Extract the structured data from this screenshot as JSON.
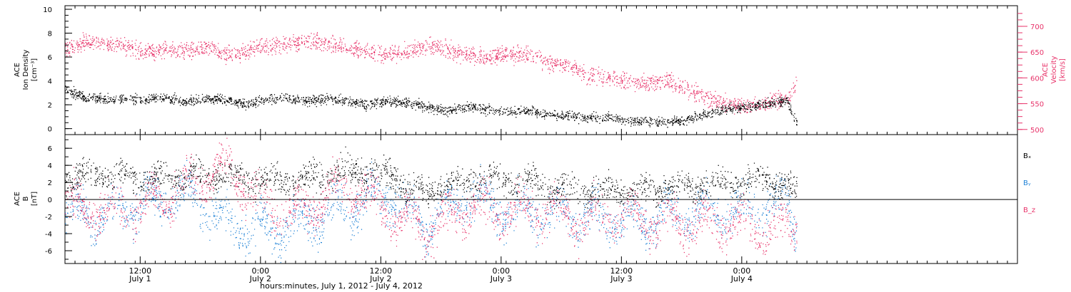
{
  "chart_data": [
    {
      "type": "scatter",
      "panel": "ion-density-velocity",
      "ylabel_left_lines": [
        "ACE",
        "Ion Density",
        "[cm⁻³]"
      ],
      "ylabel_right_lines": [
        "ACE",
        "Velocity",
        "[km/s]"
      ],
      "yticks_left": [
        "0",
        "2",
        "4",
        "6",
        "8",
        "10"
      ],
      "ylim_left": [
        -0.5,
        10.3
      ],
      "yticks_right": [
        "500",
        "550",
        "600",
        "650",
        "700"
      ],
      "ylim_right": [
        490,
        740
      ],
      "xlim_hours": [
        0,
        95
      ],
      "data_end_hours": 73,
      "series": [
        {
          "color": "#000000",
          "axis": "left",
          "points": [
            [
              0,
              3.3
            ],
            [
              2,
              2.6
            ],
            [
              4,
              2.4
            ],
            [
              6,
              2.5
            ],
            [
              8,
              2.4
            ],
            [
              10,
              2.6
            ],
            [
              12,
              2.2
            ],
            [
              14,
              2.5
            ],
            [
              16,
              2.4
            ],
            [
              18,
              2.0
            ],
            [
              20,
              2.4
            ],
            [
              22,
              2.6
            ],
            [
              24,
              2.3
            ],
            [
              26,
              2.5
            ],
            [
              28,
              2.4
            ],
            [
              30,
              2.0
            ],
            [
              32,
              2.3
            ],
            [
              34,
              2.2
            ],
            [
              36,
              1.8
            ],
            [
              38,
              1.5
            ],
            [
              40,
              1.8
            ],
            [
              42,
              1.6
            ],
            [
              44,
              1.4
            ],
            [
              46,
              1.5
            ],
            [
              48,
              1.2
            ],
            [
              50,
              1.1
            ],
            [
              52,
              0.9
            ],
            [
              54,
              0.9
            ],
            [
              56,
              0.7
            ],
            [
              58,
              0.6
            ],
            [
              60,
              0.5
            ],
            [
              62,
              0.7
            ],
            [
              64,
              1.3
            ],
            [
              66,
              1.6
            ],
            [
              68,
              1.8
            ],
            [
              70,
              2.1
            ],
            [
              72,
              2.3
            ],
            [
              73,
              0.4
            ]
          ],
          "noise": 0.35
        },
        {
          "color": "#e8336a",
          "axis": "right",
          "points": [
            [
              0,
              655
            ],
            [
              2,
              670
            ],
            [
              4,
              665
            ],
            [
              6,
              660
            ],
            [
              8,
              650
            ],
            [
              10,
              655
            ],
            [
              12,
              650
            ],
            [
              14,
              660
            ],
            [
              16,
              645
            ],
            [
              18,
              650
            ],
            [
              20,
              660
            ],
            [
              22,
              665
            ],
            [
              24,
              670
            ],
            [
              26,
              665
            ],
            [
              28,
              660
            ],
            [
              30,
              650
            ],
            [
              32,
              645
            ],
            [
              34,
              650
            ],
            [
              36,
              660
            ],
            [
              38,
              655
            ],
            [
              40,
              645
            ],
            [
              42,
              640
            ],
            [
              44,
              645
            ],
            [
              46,
              645
            ],
            [
              48,
              630
            ],
            [
              50,
              625
            ],
            [
              52,
              605
            ],
            [
              54,
              600
            ],
            [
              56,
              595
            ],
            [
              58,
              590
            ],
            [
              60,
              595
            ],
            [
              62,
              580
            ],
            [
              64,
              560
            ],
            [
              66,
              550
            ],
            [
              68,
              545
            ],
            [
              70,
              550
            ],
            [
              72,
              560
            ],
            [
              73,
              590
            ]
          ],
          "noise": 14
        }
      ]
    },
    {
      "type": "scatter",
      "panel": "magnetic-field",
      "ylabel_lines": [
        "ACE",
        "B",
        "[nT]"
      ],
      "yticks": [
        "-6",
        "-4",
        "-2",
        "0",
        "2",
        "4",
        "6"
      ],
      "ylim": [
        -7.5,
        7.6
      ],
      "xlim_hours": [
        0,
        95
      ],
      "data_end_hours": 73,
      "hline_y": 0,
      "legend": [
        "Bₓ",
        "Bᵧ",
        "B_z"
      ],
      "series": [
        {
          "color": "#000000",
          "points": [
            [
              0,
              2.5
            ],
            [
              4,
              3.0
            ],
            [
              8,
              2.4
            ],
            [
              12,
              2.6
            ],
            [
              16,
              2.9
            ],
            [
              20,
              2.0
            ],
            [
              24,
              2.6
            ],
            [
              28,
              3.4
            ],
            [
              32,
              3.0
            ],
            [
              36,
              0.5
            ],
            [
              38,
              1.8
            ],
            [
              42,
              2.4
            ],
            [
              46,
              2.2
            ],
            [
              50,
              1.2
            ],
            [
              54,
              0.8
            ],
            [
              58,
              1.2
            ],
            [
              62,
              1.5
            ],
            [
              66,
              2.0
            ],
            [
              70,
              2.4
            ],
            [
              73,
              0.8
            ]
          ],
          "noise": 1.4
        },
        {
          "color": "#1f82d6",
          "points": [
            [
              0,
              -1.5
            ],
            [
              4,
              -2.0
            ],
            [
              8,
              -0.5
            ],
            [
              12,
              0.5
            ],
            [
              16,
              -2.5
            ],
            [
              20,
              -3.8
            ],
            [
              24,
              -2.5
            ],
            [
              28,
              -1.0
            ],
            [
              32,
              0.8
            ],
            [
              36,
              -3.2
            ],
            [
              40,
              0.5
            ],
            [
              44,
              -1.2
            ],
            [
              48,
              -1.5
            ],
            [
              52,
              -2.0
            ],
            [
              56,
              -2.5
            ],
            [
              60,
              -1.8
            ],
            [
              64,
              -1.5
            ],
            [
              68,
              -1.0
            ],
            [
              72,
              -0.5
            ],
            [
              73,
              -3.8
            ]
          ],
          "noise": 2.0
        },
        {
          "color": "#e8336a",
          "points": [
            [
              0,
              -0.5
            ],
            [
              4,
              -1.5
            ],
            [
              8,
              -1.0
            ],
            [
              12,
              1.5
            ],
            [
              16,
              4.0
            ],
            [
              20,
              -1.0
            ],
            [
              24,
              -1.5
            ],
            [
              28,
              2.0
            ],
            [
              32,
              -1.0
            ],
            [
              36,
              -3.6
            ],
            [
              40,
              -1.0
            ],
            [
              44,
              -1.5
            ],
            [
              48,
              -1.0
            ],
            [
              52,
              -2.5
            ],
            [
              56,
              -1.5
            ],
            [
              60,
              -3.0
            ],
            [
              64,
              -2.5
            ],
            [
              68,
              -3.0
            ],
            [
              72,
              -3.5
            ],
            [
              73,
              -2.5
            ]
          ],
          "noise": 2.0
        }
      ]
    }
  ],
  "xaxis": {
    "ticks": [
      {
        "hours": 7.5,
        "time": "12:00",
        "day": "July 1"
      },
      {
        "hours": 19.5,
        "time": "0:00",
        "day": "July 2"
      },
      {
        "hours": 31.5,
        "time": "12:00",
        "day": "July 2"
      },
      {
        "hours": 43.5,
        "time": "0:00",
        "day": "July 3"
      },
      {
        "hours": 55.5,
        "time": "12:00",
        "day": "July 3"
      },
      {
        "hours": 67.5,
        "time": "0:00",
        "day": "July 4"
      }
    ],
    "label": "hours:minutes, July  1, 2012 - July  4, 2012"
  },
  "colors": {
    "black": "#000000",
    "pink": "#e8336a",
    "blue": "#1f82d6"
  }
}
